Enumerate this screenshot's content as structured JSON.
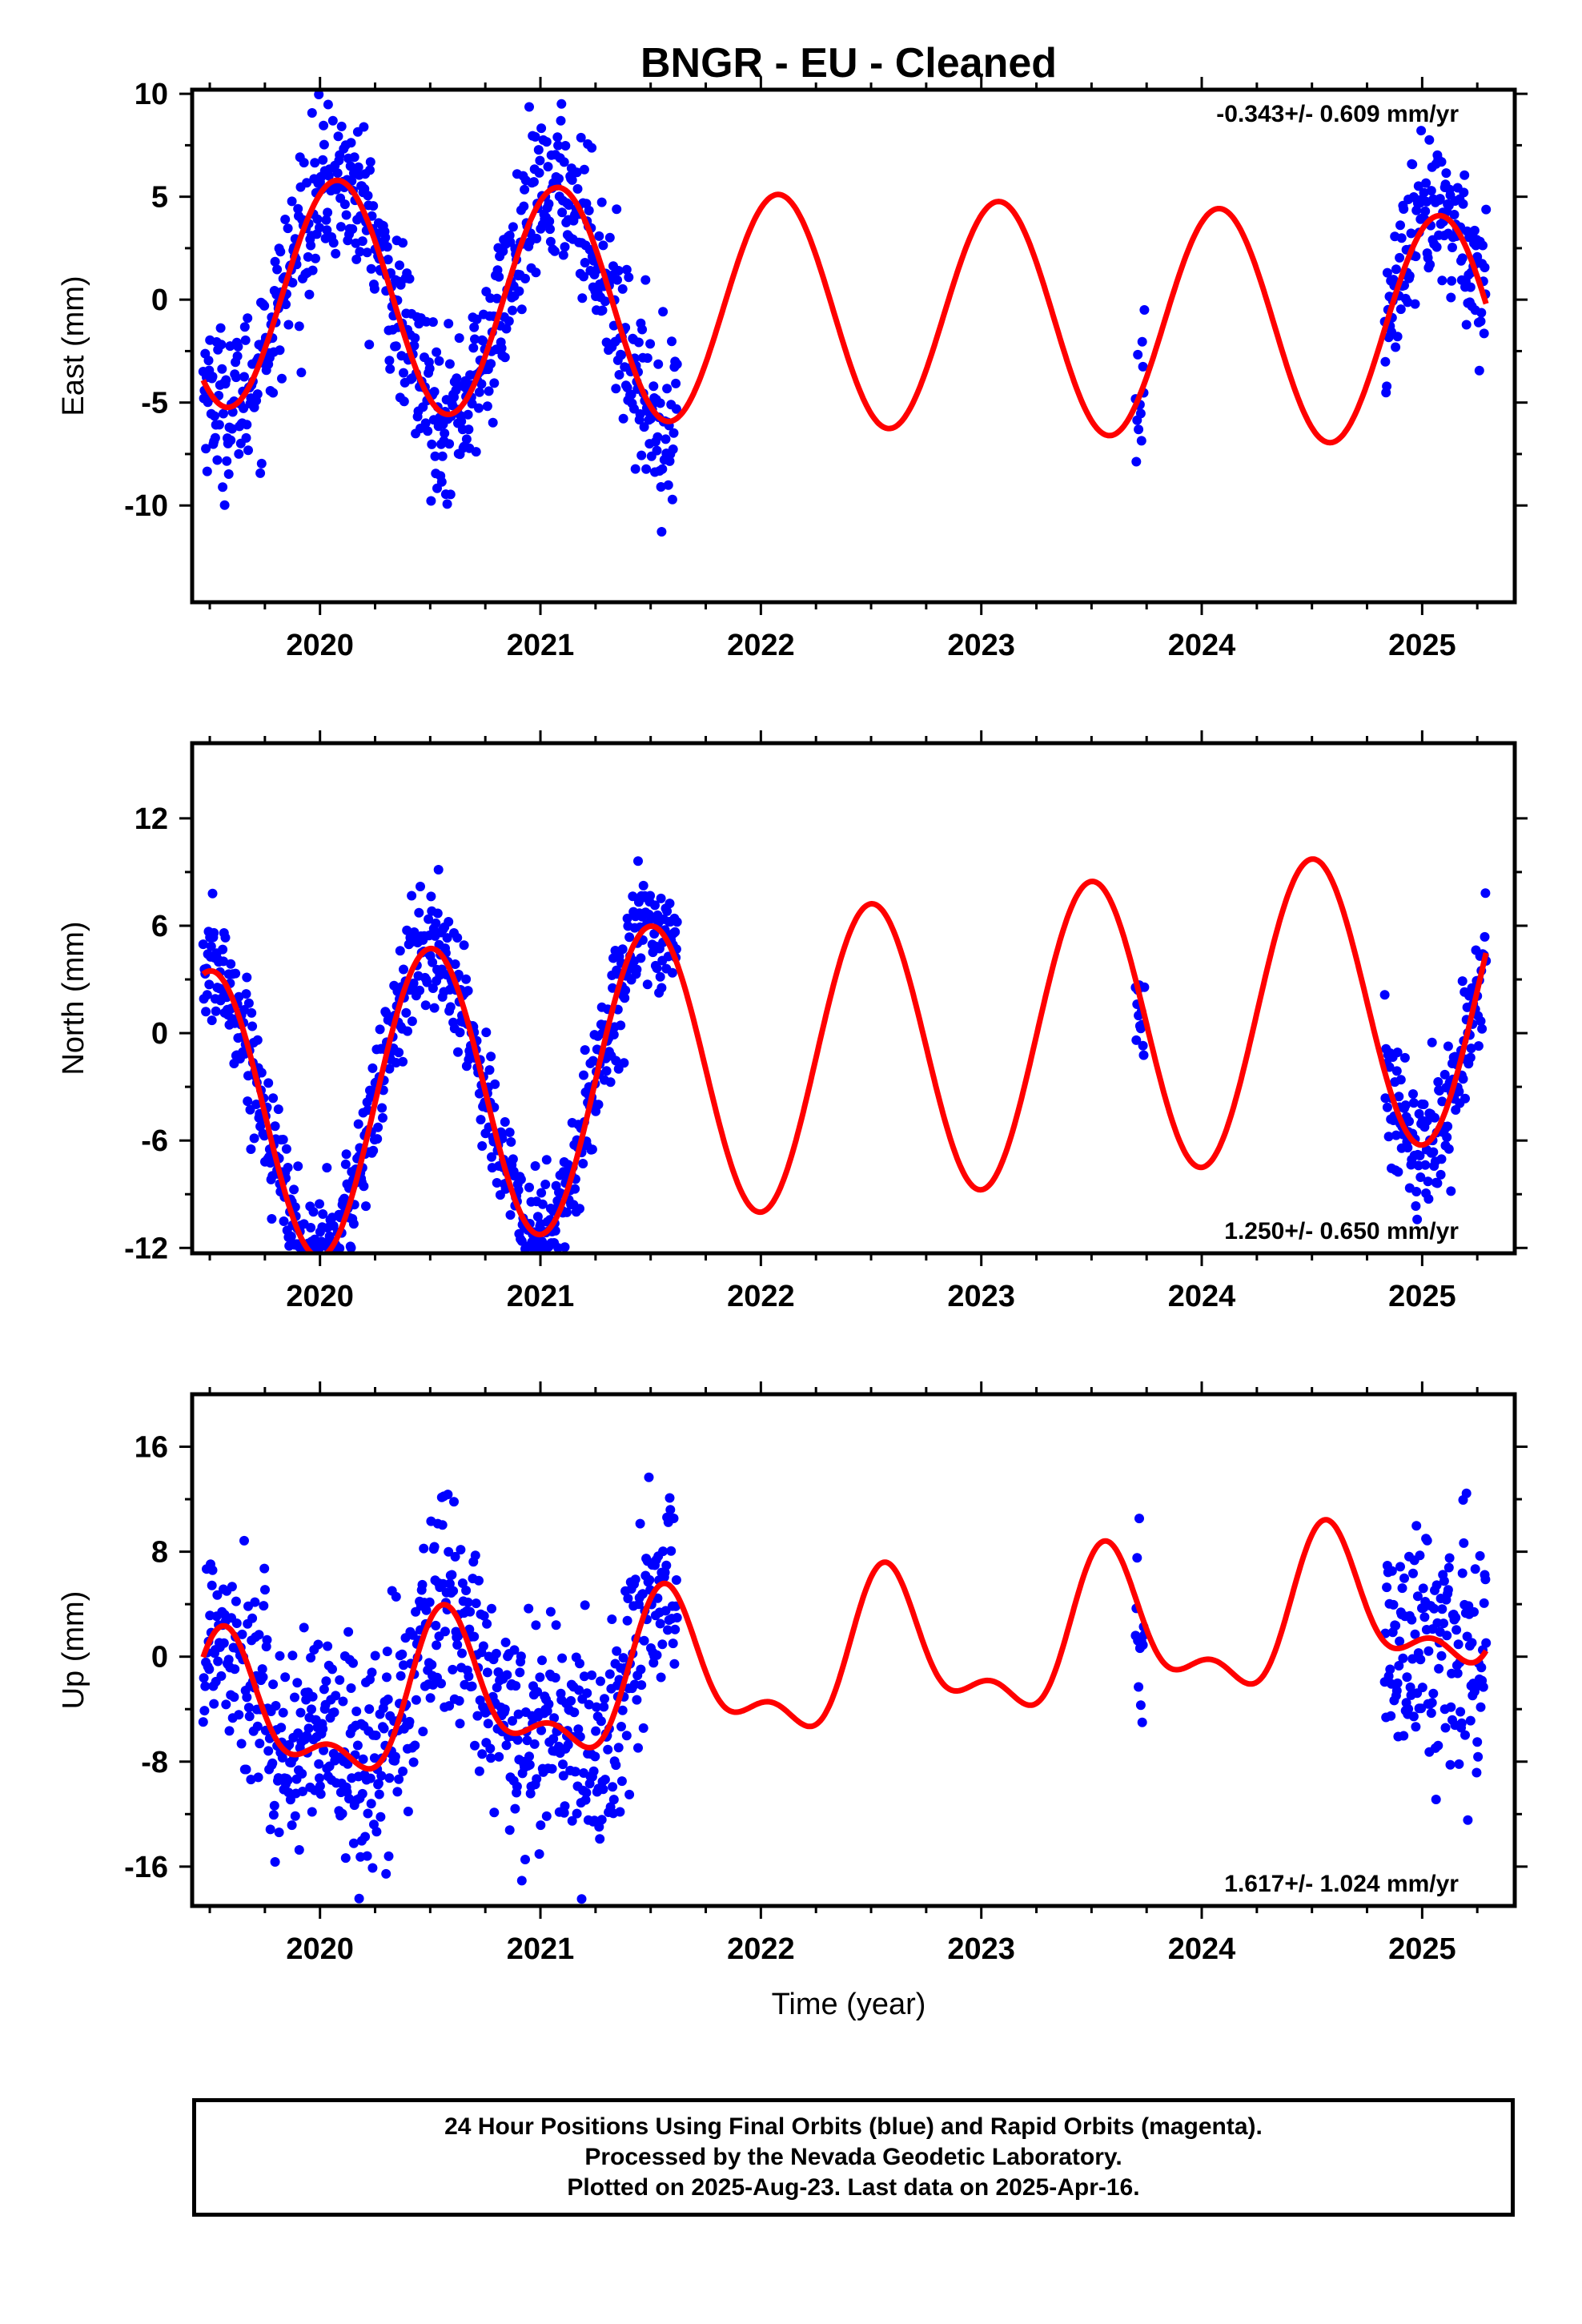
{
  "title": "BNGR  - EU - Cleaned",
  "xlabel": "Time (year)",
  "footer": {
    "line1": "24 Hour Positions Using Final Orbits (blue) and Rapid Orbits (magenta).",
    "line2": "Processed by the Nevada Geodetic Laboratory.",
    "line3": "Plotted on 2025-Aug-23. Last data on 2025-Apr-16."
  },
  "colors": {
    "final_orbits": "#0000ff",
    "model_fit": "#ff0000",
    "frame": "#000000"
  },
  "chart_data": [
    {
      "type": "scatter",
      "ylabel": "East (mm)",
      "rate_label": "-0.343+/- 0.609 mm/yr",
      "rate_position": "top-right",
      "xlim": [
        2019.42,
        2025.42
      ],
      "ylim": [
        -14.7,
        10.2
      ],
      "xticks": [
        2020,
        2021,
        2022,
        2023,
        2024,
        2025
      ],
      "xtick_labels": [
        "2020",
        "2021",
        "2022",
        "2023",
        "2024",
        "2025"
      ],
      "yticks": [
        10,
        5,
        0,
        -5,
        -10
      ],
      "ytick_labels": [
        "10",
        "5",
        "0",
        "-5",
        "-10"
      ],
      "grid": false,
      "data_segments": [
        [
          2019.47,
          2021.62
        ],
        [
          2023.7,
          2023.74
        ],
        [
          2024.83,
          2025.29
        ]
      ],
      "model": {
        "offset": -0.6,
        "trend": -0.343,
        "annual_amp": 5.6,
        "peak_year_fraction": 0.08,
        "semiannual_amp": 0.0,
        "semiannual_phase": 0.0
      },
      "scatter_sd": 1.9,
      "series": [
        {
          "name": "Final Orbits",
          "color": "#0000ff",
          "kind": "points"
        },
        {
          "name": "Model fit",
          "color": "#ff0000",
          "kind": "line"
        }
      ]
    },
    {
      "type": "scatter",
      "ylabel": "North (mm)",
      "rate_label": "1.250+/- 0.650 mm/yr",
      "rate_position": "bottom-right",
      "xlim": [
        2019.42,
        2025.42
      ],
      "ylim": [
        -12.3,
        16.2
      ],
      "xticks": [
        2020,
        2021,
        2022,
        2023,
        2024,
        2025
      ],
      "xtick_labels": [
        "2020",
        "2021",
        "2022",
        "2023",
        "2024",
        "2025"
      ],
      "yticks": [
        12,
        6,
        0,
        -6,
        -12
      ],
      "ytick_labels": [
        "12",
        "6",
        "0",
        "-6",
        "-12"
      ],
      "grid": false,
      "data_segments": [
        [
          2019.47,
          2021.62
        ],
        [
          2023.7,
          2023.74
        ],
        [
          2024.83,
          2025.29
        ]
      ],
      "model": {
        "offset": -1.2,
        "trend": 1.25,
        "annual_amp": 8.3,
        "peak_year_fraction": 0.5,
        "semiannual_amp": 0.0,
        "semiannual_phase": 0.0
      },
      "scatter_sd": 1.7,
      "series": [
        {
          "name": "Final Orbits",
          "color": "#0000ff",
          "kind": "points"
        },
        {
          "name": "Model fit",
          "color": "#ff0000",
          "kind": "line"
        }
      ]
    },
    {
      "type": "scatter",
      "ylabel": "Up (mm)",
      "rate_label": "1.617+/- 1.024 mm/yr",
      "rate_position": "bottom-right",
      "xlim": [
        2019.42,
        2025.42
      ],
      "ylim": [
        -19.0,
        20.0
      ],
      "xticks": [
        2020,
        2021,
        2022,
        2023,
        2024,
        2025
      ],
      "xtick_labels": [
        "2020",
        "2021",
        "2022",
        "2023",
        "2024",
        "2025"
      ],
      "yticks": [
        16,
        8,
        0,
        -8,
        -16
      ],
      "ytick_labels": [
        "16",
        "8",
        "0",
        "-8",
        "-16"
      ],
      "grid": false,
      "data_segments": [
        [
          2019.47,
          2021.62
        ],
        [
          2023.7,
          2023.74
        ],
        [
          2024.83,
          2025.29
        ]
      ],
      "model": {
        "offset": -0.5,
        "trend": 1.617,
        "annual_amp": 5.0,
        "peak_year_fraction": 0.58,
        "semiannual_amp": 2.5,
        "semiannual_phase": 0.55
      },
      "scatter_sd": 4.3,
      "series": [
        {
          "name": "Final Orbits",
          "color": "#0000ff",
          "kind": "points"
        },
        {
          "name": "Model fit",
          "color": "#ff0000",
          "kind": "line"
        }
      ]
    }
  ]
}
